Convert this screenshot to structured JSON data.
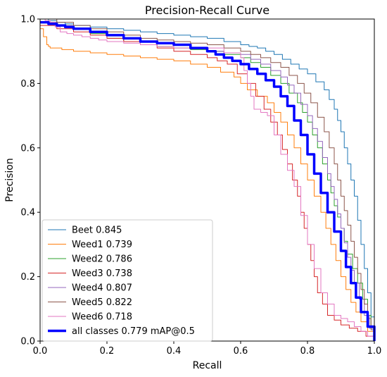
{
  "chart_data": {
    "type": "line",
    "title": "Precision-Recall Curve",
    "xlabel": "Recall",
    "ylabel": "Precision",
    "xlim": [
      0,
      1
    ],
    "ylim": [
      0,
      1
    ],
    "xticks": [
      "0.0",
      "0.2",
      "0.4",
      "0.6",
      "0.8",
      "1.0"
    ],
    "yticks": [
      "0.0",
      "0.2",
      "0.4",
      "0.6",
      "0.8",
      "1.0"
    ],
    "grid": false,
    "legend_position": "lower-left",
    "series": [
      {
        "name": "Beet 0.845",
        "color": "#1f77b4",
        "width": 1,
        "x": [
          0.0,
          0.05,
          0.1,
          0.2,
          0.3,
          0.4,
          0.5,
          0.6,
          0.65,
          0.7,
          0.75,
          0.8,
          0.85,
          0.88,
          0.9,
          0.92,
          0.94,
          0.96,
          0.98,
          1.0
        ],
        "y": [
          1.0,
          0.99,
          0.98,
          0.97,
          0.96,
          0.95,
          0.94,
          0.92,
          0.91,
          0.89,
          0.86,
          0.83,
          0.78,
          0.72,
          0.65,
          0.55,
          0.45,
          0.3,
          0.15,
          0.0
        ]
      },
      {
        "name": "Weed1 0.739",
        "color": "#ff7f0e",
        "width": 1,
        "x": [
          0.0,
          0.02,
          0.03,
          0.1,
          0.2,
          0.3,
          0.4,
          0.5,
          0.58,
          0.62,
          0.68,
          0.72,
          0.76,
          0.8,
          0.84,
          0.87,
          0.9,
          0.93,
          0.96,
          1.0
        ],
        "y": [
          0.97,
          0.92,
          0.91,
          0.9,
          0.89,
          0.88,
          0.87,
          0.85,
          0.82,
          0.78,
          0.74,
          0.68,
          0.6,
          0.5,
          0.4,
          0.3,
          0.2,
          0.12,
          0.06,
          0.0
        ]
      },
      {
        "name": "Weed2 0.786",
        "color": "#2ca02c",
        "width": 1,
        "x": [
          0.0,
          0.1,
          0.2,
          0.3,
          0.4,
          0.5,
          0.6,
          0.66,
          0.72,
          0.77,
          0.8,
          0.83,
          0.86,
          0.88,
          0.9,
          0.92,
          0.95,
          0.98,
          1.0
        ],
        "y": [
          0.99,
          0.97,
          0.94,
          0.92,
          0.91,
          0.9,
          0.88,
          0.85,
          0.8,
          0.74,
          0.68,
          0.6,
          0.5,
          0.42,
          0.35,
          0.27,
          0.18,
          0.08,
          0.0
        ]
      },
      {
        "name": "Weed3 0.738",
        "color": "#d62728",
        "width": 1,
        "x": [
          0.0,
          0.1,
          0.2,
          0.3,
          0.4,
          0.5,
          0.56,
          0.62,
          0.67,
          0.71,
          0.74,
          0.77,
          0.79,
          0.81,
          0.83,
          0.86,
          0.9,
          0.95,
          1.0
        ],
        "y": [
          0.98,
          0.96,
          0.94,
          0.92,
          0.9,
          0.88,
          0.86,
          0.8,
          0.72,
          0.64,
          0.55,
          0.45,
          0.35,
          0.25,
          0.15,
          0.08,
          0.05,
          0.03,
          0.0
        ]
      },
      {
        "name": "Weed4 0.807",
        "color": "#9467bd",
        "width": 1,
        "x": [
          0.0,
          0.1,
          0.2,
          0.3,
          0.4,
          0.5,
          0.6,
          0.66,
          0.72,
          0.76,
          0.8,
          0.83,
          0.86,
          0.88,
          0.9,
          0.92,
          0.94,
          0.97,
          1.0
        ],
        "y": [
          0.99,
          0.97,
          0.95,
          0.93,
          0.92,
          0.9,
          0.89,
          0.86,
          0.82,
          0.77,
          0.7,
          0.62,
          0.52,
          0.44,
          0.35,
          0.26,
          0.18,
          0.08,
          0.0
        ]
      },
      {
        "name": "Weed5 0.822",
        "color": "#8c564b",
        "width": 1,
        "x": [
          0.0,
          0.1,
          0.2,
          0.3,
          0.4,
          0.5,
          0.6,
          0.66,
          0.72,
          0.77,
          0.81,
          0.85,
          0.88,
          0.9,
          0.92,
          0.94,
          0.96,
          0.98,
          1.0
        ],
        "y": [
          1.0,
          0.98,
          0.96,
          0.94,
          0.93,
          0.92,
          0.9,
          0.88,
          0.85,
          0.8,
          0.74,
          0.65,
          0.55,
          0.45,
          0.36,
          0.26,
          0.16,
          0.07,
          0.0
        ]
      },
      {
        "name": "Weed6 0.718",
        "color": "#e377c2",
        "width": 1,
        "x": [
          0.0,
          0.03,
          0.06,
          0.1,
          0.15,
          0.2,
          0.3,
          0.4,
          0.5,
          0.6,
          0.62,
          0.64,
          0.68,
          0.72,
          0.76,
          0.8,
          0.84,
          0.88,
          0.92,
          0.96,
          1.0
        ],
        "y": [
          1.0,
          0.99,
          0.96,
          0.95,
          0.94,
          0.93,
          0.92,
          0.91,
          0.91,
          0.88,
          0.8,
          0.72,
          0.7,
          0.58,
          0.48,
          0.3,
          0.15,
          0.08,
          0.06,
          0.03,
          0.0
        ]
      },
      {
        "name": "all classes 0.779 mAP@0.5",
        "color": "#0000ff",
        "width": 3.5,
        "x": [
          0.0,
          0.05,
          0.1,
          0.2,
          0.3,
          0.4,
          0.5,
          0.55,
          0.6,
          0.65,
          0.7,
          0.74,
          0.78,
          0.82,
          0.86,
          0.9,
          0.93,
          0.96,
          1.0
        ],
        "y": [
          0.99,
          0.98,
          0.97,
          0.95,
          0.93,
          0.92,
          0.9,
          0.88,
          0.86,
          0.83,
          0.79,
          0.73,
          0.64,
          0.52,
          0.4,
          0.28,
          0.18,
          0.09,
          0.0
        ]
      }
    ]
  }
}
